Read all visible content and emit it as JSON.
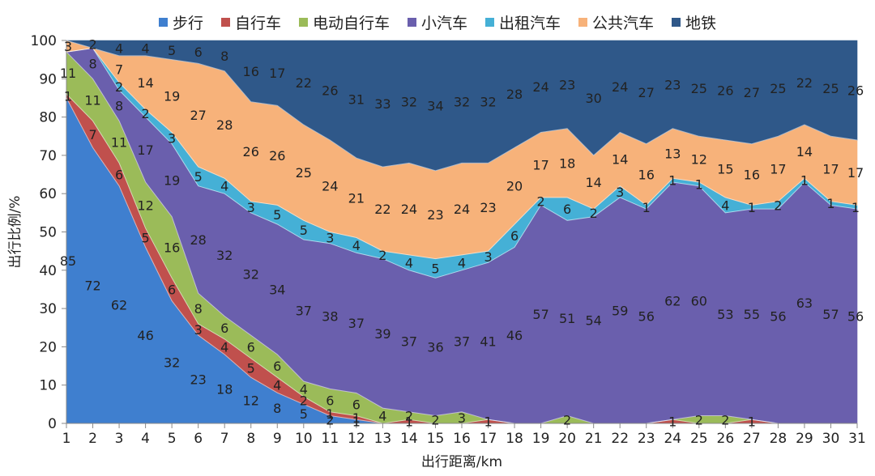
{
  "chart_data": {
    "type": "area",
    "stacked": true,
    "x": [
      1,
      2,
      3,
      4,
      5,
      6,
      7,
      8,
      9,
      10,
      11,
      12,
      13,
      14,
      15,
      16,
      17,
      18,
      19,
      20,
      21,
      22,
      23,
      24,
      25,
      26,
      27,
      28,
      29,
      30,
      31
    ],
    "xlabel": "出行距离/km",
    "ylabel": "出行比例/%",
    "ylim": [
      0,
      100
    ],
    "yticks": [
      0,
      10,
      20,
      30,
      40,
      50,
      60,
      70,
      80,
      90,
      100
    ],
    "legend_position": "top",
    "series": [
      {
        "name": "步行",
        "color": "#3f7fcf",
        "values": [
          85,
          72,
          62,
          46,
          32,
          23,
          18,
          12,
          8,
          5,
          2,
          1,
          0,
          0,
          0,
          0,
          0,
          0,
          0,
          0,
          0,
          0,
          0,
          0,
          0,
          0,
          0,
          0,
          0,
          0,
          0
        ],
        "labels": [
          "85",
          "72",
          "62",
          "46",
          "32",
          "23",
          "18",
          "12",
          "8",
          "5",
          "2",
          "1",
          "",
          "",
          "",
          "",
          "",
          "",
          "",
          "",
          "",
          "",
          "",
          "",
          "",
          "",
          "",
          "",
          "",
          "",
          ""
        ]
      },
      {
        "name": "自行车",
        "color": "#c0504d",
        "values": [
          1,
          7,
          6,
          5,
          6,
          3,
          4,
          5,
          4,
          2,
          1,
          1,
          0,
          1,
          0,
          0,
          1,
          0,
          0,
          0,
          0,
          0,
          0,
          1,
          0,
          0,
          1,
          0,
          0,
          0,
          0
        ],
        "labels": [
          "1",
          "7",
          "6",
          "5",
          "6",
          "3",
          "4",
          "5",
          "4",
          "2",
          "1",
          "1",
          "",
          "1",
          "",
          "",
          "1",
          "",
          "",
          "",
          "",
          "",
          "",
          "1",
          "",
          "",
          "1",
          "",
          "",
          "",
          ""
        ]
      },
      {
        "name": "电动自行车",
        "color": "#9bbb59",
        "values": [
          11,
          11,
          11,
          12,
          16,
          8,
          6,
          6,
          6,
          4,
          6,
          6,
          4,
          2,
          2,
          3,
          0,
          0,
          0,
          2,
          0,
          0,
          0,
          0,
          2,
          2,
          0,
          0,
          0,
          0,
          0
        ],
        "labels": [
          "11",
          "11",
          "11",
          "12",
          "16",
          "8",
          "6",
          "6",
          "6",
          "4",
          "6",
          "6",
          "4",
          "2",
          "2",
          "3",
          "",
          "",
          "",
          "2",
          "",
          "",
          "",
          "",
          "2",
          "2",
          "",
          "",
          "",
          "",
          ""
        ]
      },
      {
        "name": "小汽车",
        "color": "#6a5fad",
        "values": [
          0,
          8,
          8,
          17,
          19,
          28,
          32,
          32,
          34,
          37,
          38,
          37,
          39,
          37,
          36,
          37,
          41,
          46,
          57,
          51,
          54,
          59,
          56,
          62,
          60,
          53,
          55,
          56,
          63,
          57,
          56
        ],
        "labels": [
          "",
          "8",
          "8",
          "17",
          "19",
          "28",
          "32",
          "32",
          "34",
          "37",
          "38",
          "37",
          "39",
          "37",
          "36",
          "37",
          "41",
          "46",
          "57",
          "51",
          "54",
          "59",
          "56",
          "62",
          "60",
          "53",
          "55",
          "56",
          "63",
          "57",
          "56"
        ]
      },
      {
        "name": "出租汽车",
        "color": "#45b0d6",
        "values": [
          0,
          0,
          2,
          2,
          3,
          5,
          4,
          3,
          5,
          5,
          3,
          4,
          2,
          4,
          5,
          4,
          3,
          6,
          2,
          6,
          2,
          3,
          1,
          1,
          1,
          4,
          1,
          2,
          1,
          1,
          1
        ],
        "labels": [
          "",
          "",
          "2",
          "2",
          "3",
          "5",
          "4",
          "3",
          "5",
          "5",
          "3",
          "4",
          "2",
          "4",
          "5",
          "4",
          "3",
          "6",
          "2",
          "6",
          "2",
          "3",
          "1",
          "1",
          "1",
          "4",
          "1",
          "2",
          "1",
          "1",
          "1"
        ]
      },
      {
        "name": "公共汽车",
        "color": "#f7b27a",
        "values": [
          3,
          0,
          7,
          14,
          19,
          27,
          28,
          26,
          26,
          25,
          24,
          21,
          22,
          24,
          23,
          24,
          23,
          20,
          17,
          18,
          14,
          14,
          16,
          13,
          12,
          15,
          16,
          17,
          14,
          17,
          17
        ],
        "labels": [
          "3",
          "",
          "7",
          "14",
          "19",
          "27",
          "28",
          "26",
          "26",
          "25",
          "24",
          "21",
          "22",
          "24",
          "23",
          "24",
          "23",
          "20",
          "17",
          "18",
          "14",
          "14",
          "16",
          "13",
          "12",
          "15",
          "16",
          "17",
          "14",
          "17",
          "17"
        ]
      },
      {
        "name": "地铁",
        "color": "#2f5889",
        "values": [
          0,
          2,
          4,
          4,
          5,
          6,
          8,
          16,
          17,
          22,
          26,
          31,
          33,
          32,
          34,
          32,
          32,
          28,
          24,
          23,
          30,
          24,
          27,
          23,
          25,
          26,
          27,
          25,
          22,
          25,
          26
        ],
        "labels": [
          "",
          "2",
          "4",
          "4",
          "5",
          "6",
          "8",
          "16",
          "17",
          "22",
          "26",
          "31",
          "33",
          "32",
          "34",
          "32",
          "32",
          "28",
          "24",
          "23",
          "30",
          "24",
          "27",
          "23",
          "25",
          "26",
          "27",
          "25",
          "22",
          "25",
          "26"
        ]
      }
    ]
  }
}
